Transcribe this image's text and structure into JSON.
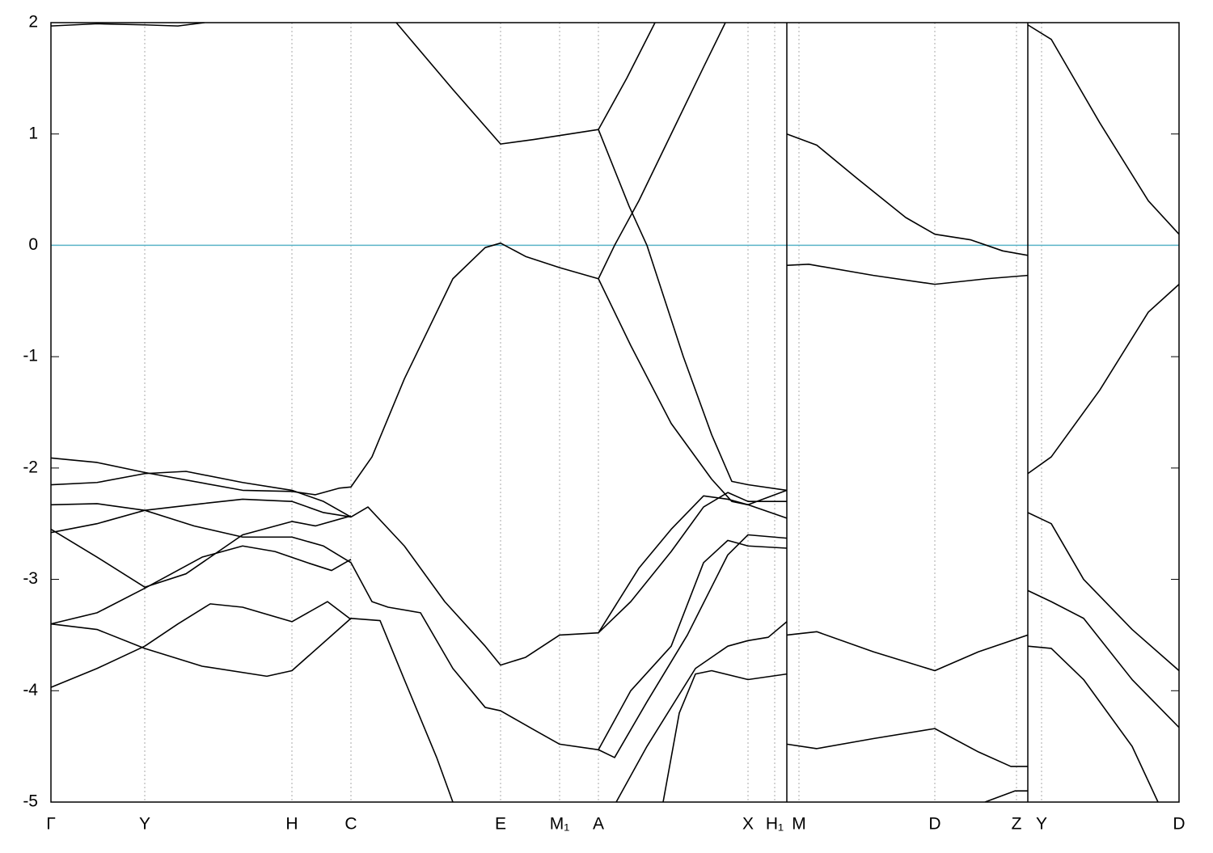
{
  "chart_data": {
    "type": "line",
    "color": "#000000",
    "fermi_level": 0,
    "fermi_color": "#5ab4c8",
    "xlim": [
      63,
      1458
    ],
    "ylim": [
      -5,
      2
    ],
    "yticks": [
      -5,
      -4,
      -3,
      -2,
      -1,
      0,
      1,
      2
    ],
    "xticks": [
      {
        "value": 63,
        "label": "Γ"
      },
      {
        "value": 179,
        "label": "Y"
      },
      {
        "value": 361,
        "label": "H"
      },
      {
        "value": 434,
        "label": "C"
      },
      {
        "value": 619,
        "label": "E"
      },
      {
        "value": 692,
        "label": "M₁"
      },
      {
        "value": 740,
        "label": "A"
      },
      {
        "value": 925,
        "label": "X"
      },
      {
        "value": 958,
        "label": "H₁"
      },
      {
        "value": 988,
        "label": "M"
      },
      {
        "value": 1156,
        "label": "D"
      },
      {
        "value": 1257,
        "label": "Z"
      },
      {
        "value": 1288,
        "label": "Y"
      },
      {
        "value": 1458,
        "label": "D"
      }
    ],
    "breaks": [
      973,
      1271
    ],
    "series": [
      {
        "x": [
          63,
          120,
          179,
          220,
          253
        ],
        "values": [
          1.97,
          1.99,
          1.98,
          1.97,
          2.0
        ]
      },
      {
        "x": [
          490,
          560,
          619,
          660,
          740,
          775,
          810
        ],
        "values": [
          2.0,
          1.4,
          0.91,
          0.95,
          1.04,
          1.5,
          2.0
        ]
      },
      {
        "x": [
          740,
          778,
          800,
          845,
          880,
          905,
          925,
          973
        ],
        "values": [
          1.04,
          0.35,
          0.0,
          -1.0,
          -1.7,
          -2.12,
          -2.15,
          -2.2
        ]
      },
      {
        "x": [
          63,
          120,
          179,
          300,
          361,
          390,
          420,
          434,
          460,
          500,
          560,
          600,
          619,
          650,
          692,
          740,
          760,
          790,
          830,
          870,
          897
        ],
        "values": [
          -1.91,
          -1.95,
          -2.04,
          -2.2,
          -2.21,
          -2.24,
          -2.18,
          -2.17,
          -1.9,
          -1.2,
          -0.3,
          -0.02,
          0.02,
          -0.1,
          -0.2,
          -0.3,
          0.0,
          0.4,
          1.0,
          1.6,
          2.0
        ]
      },
      {
        "x": [
          740,
          780,
          830,
          880,
          905,
          925,
          973
        ],
        "values": [
          -0.3,
          -0.9,
          -1.6,
          -2.1,
          -2.3,
          -2.33,
          -2.45
        ]
      },
      {
        "x": [
          63,
          120,
          179,
          230,
          300,
          361,
          400,
          434,
          455,
          500,
          550,
          600,
          619,
          650,
          692,
          740,
          780,
          830,
          870,
          900,
          925,
          973
        ],
        "values": [
          -2.15,
          -2.13,
          -2.05,
          -2.03,
          -2.13,
          -2.2,
          -2.3,
          -2.44,
          -2.35,
          -2.7,
          -3.2,
          -3.6,
          -3.77,
          -3.7,
          -3.5,
          -3.48,
          -3.2,
          -2.75,
          -2.35,
          -2.22,
          -2.3,
          -2.3
        ]
      },
      {
        "x": [
          63,
          120,
          179,
          250,
          300,
          361,
          400,
          434
        ],
        "values": [
          -2.33,
          -2.32,
          -2.38,
          -2.32,
          -2.28,
          -2.3,
          -2.4,
          -2.44
        ]
      },
      {
        "x": [
          63,
          120,
          179,
          230,
          300,
          361,
          390,
          434
        ],
        "values": [
          -2.55,
          -2.8,
          -3.07,
          -2.95,
          -2.6,
          -2.48,
          -2.52,
          -2.43
        ]
      },
      {
        "x": [
          63,
          120,
          179,
          240,
          300,
          361,
          400,
          434,
          460,
          480,
          520,
          560,
          600,
          619,
          660,
          692,
          740,
          760,
          800,
          850,
          900,
          925,
          973
        ],
        "values": [
          -2.58,
          -2.5,
          -2.38,
          -2.52,
          -2.62,
          -2.62,
          -2.7,
          -2.85,
          -3.2,
          -3.25,
          -3.3,
          -3.8,
          -4.15,
          -4.18,
          -4.35,
          -4.48,
          -4.53,
          -4.6,
          -4.1,
          -3.5,
          -2.78,
          -2.6,
          -2.63
        ]
      },
      {
        "x": [
          63,
          120,
          179,
          250,
          300,
          340,
          380,
          410,
          434
        ],
        "values": [
          -3.4,
          -3.3,
          -3.08,
          -2.8,
          -2.7,
          -2.75,
          -2.85,
          -2.92,
          -2.82
        ]
      },
      {
        "x": [
          63,
          120,
          179,
          250,
          330,
          361,
          434,
          470,
          500,
          540,
          560
        ],
        "values": [
          -3.4,
          -3.45,
          -3.62,
          -3.78,
          -3.87,
          -3.82,
          -3.35,
          -3.37,
          -3.9,
          -4.6,
          -5.0
        ]
      },
      {
        "x": [
          63,
          120,
          179,
          220,
          260,
          300,
          361,
          405,
          434
        ],
        "values": [
          -3.97,
          -3.8,
          -3.6,
          -3.4,
          -3.22,
          -3.25,
          -3.38,
          -3.2,
          -3.36
        ]
      },
      {
        "x": [
          740,
          790,
          830,
          870,
          900,
          925,
          973
        ],
        "values": [
          -3.48,
          -2.9,
          -2.55,
          -2.25,
          -2.28,
          -2.33,
          -2.2
        ]
      },
      {
        "x": [
          740,
          780,
          830,
          870,
          900,
          925,
          973
        ],
        "values": [
          -4.53,
          -4.0,
          -3.6,
          -2.85,
          -2.65,
          -2.7,
          -2.72
        ]
      },
      {
        "x": [
          820,
          840,
          860,
          880,
          925,
          973
        ],
        "values": [
          -5.0,
          -4.2,
          -3.85,
          -3.82,
          -3.9,
          -3.85
        ]
      },
      {
        "x": [
          762,
          800,
          860,
          900,
          925,
          950,
          973
        ],
        "values": [
          -5.0,
          -4.5,
          -3.8,
          -3.6,
          -3.55,
          -3.52,
          -3.38
        ]
      },
      {
        "x": [
          973,
          1010,
          1060,
          1120,
          1156,
          1200,
          1240,
          1271
        ],
        "values": [
          1.0,
          0.9,
          0.6,
          0.25,
          0.1,
          0.05,
          -0.05,
          -0.09
        ]
      },
      {
        "x": [
          973,
          1000,
          1080,
          1156,
          1220,
          1271
        ],
        "values": [
          -0.18,
          -0.17,
          -0.27,
          -0.35,
          -0.3,
          -0.27
        ]
      },
      {
        "x": [
          973,
          1010,
          1080,
          1156,
          1210,
          1271
        ],
        "values": [
          -3.5,
          -3.47,
          -3.65,
          -3.82,
          -3.65,
          -3.5
        ]
      },
      {
        "x": [
          973,
          1010,
          1080,
          1156,
          1210,
          1250,
          1271
        ],
        "values": [
          -4.48,
          -4.52,
          -4.43,
          -4.34,
          -4.55,
          -4.68,
          -4.68
        ]
      },
      {
        "x": [
          1218,
          1255,
          1271
        ],
        "values": [
          -5.0,
          -4.9,
          -4.9
        ]
      },
      {
        "x": [
          1271,
          1300,
          1360,
          1420,
          1458
        ],
        "values": [
          1.98,
          1.85,
          1.1,
          0.4,
          0.1
        ]
      },
      {
        "x": [
          1271,
          1300,
          1360,
          1420,
          1458
        ],
        "values": [
          -2.05,
          -1.9,
          -1.3,
          -0.6,
          -0.35
        ]
      },
      {
        "x": [
          1271,
          1300,
          1340,
          1400,
          1458
        ],
        "values": [
          -2.4,
          -2.5,
          -3.0,
          -3.45,
          -3.82
        ]
      },
      {
        "x": [
          1271,
          1300,
          1340,
          1400,
          1458
        ],
        "values": [
          -3.1,
          -3.2,
          -3.35,
          -3.9,
          -4.33
        ]
      },
      {
        "x": [
          1271,
          1300,
          1340,
          1400,
          1432
        ],
        "values": [
          -3.6,
          -3.62,
          -3.9,
          -4.5,
          -5.0
        ]
      }
    ]
  }
}
